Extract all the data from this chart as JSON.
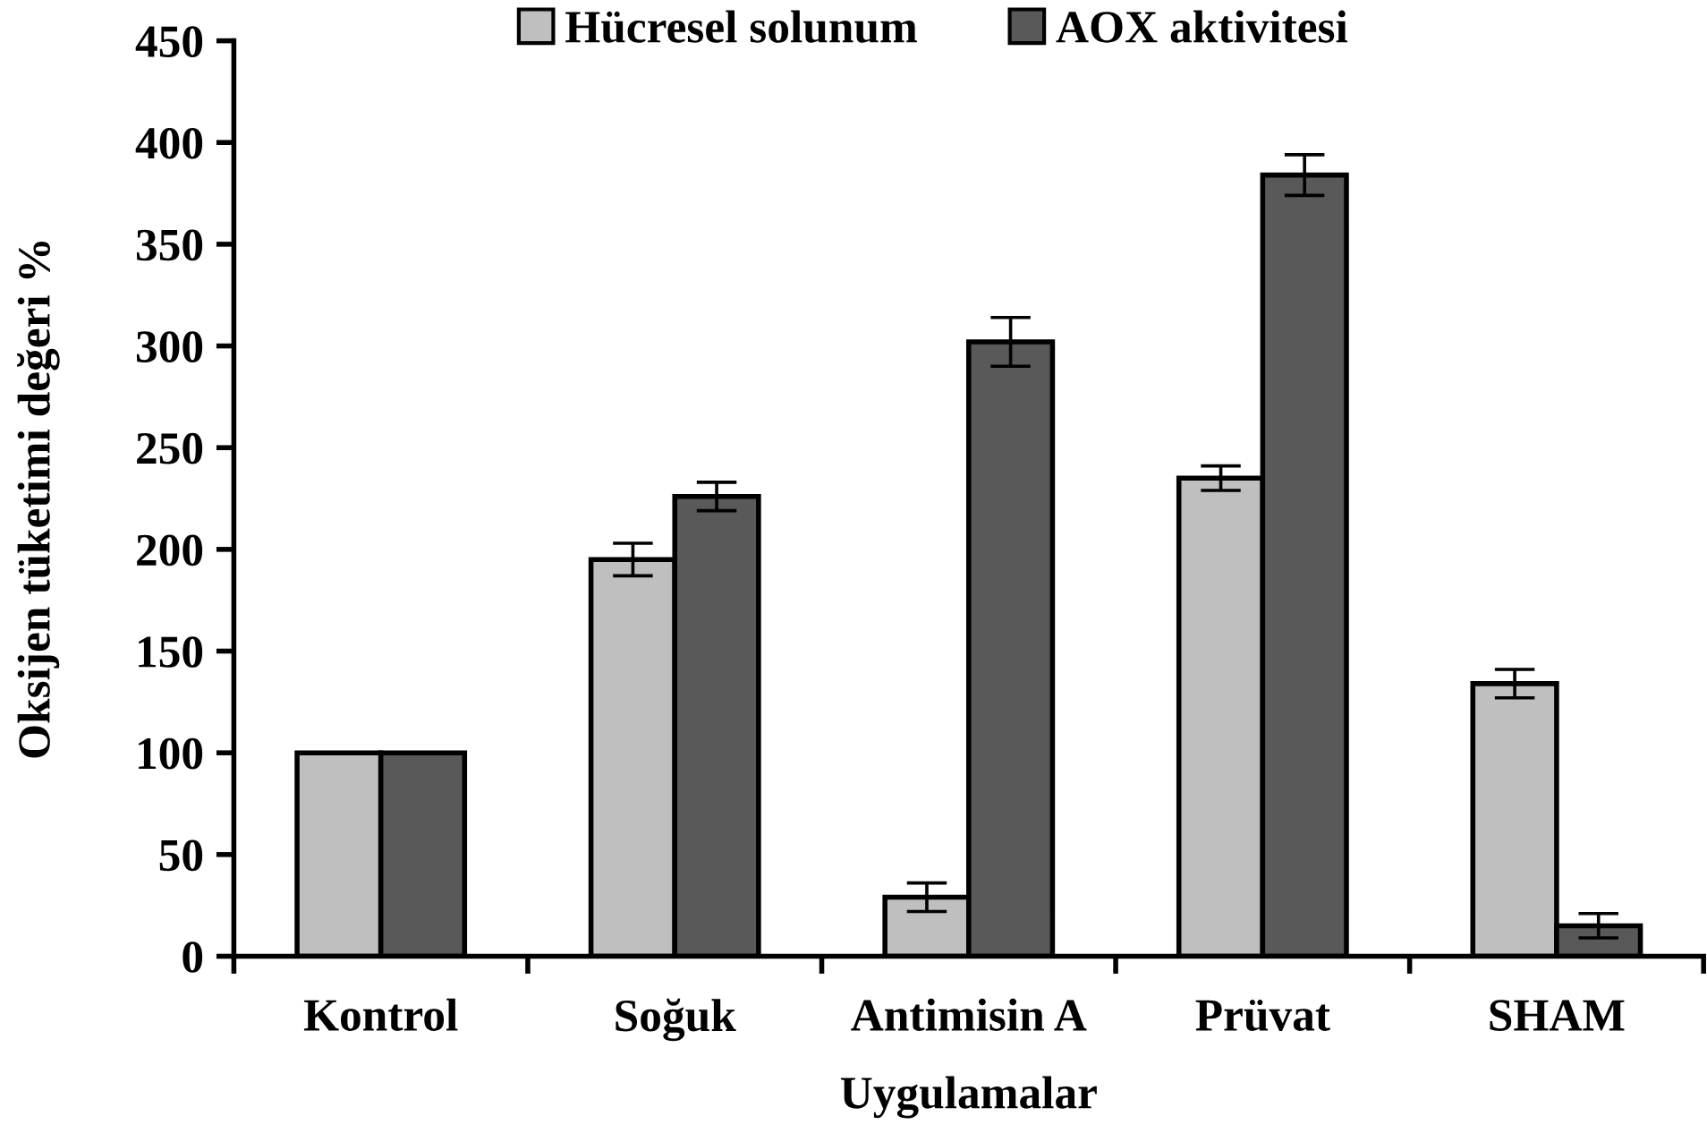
{
  "chart_data": {
    "type": "bar",
    "xlabel": "Uygulamalar",
    "ylabel": "Oksijen tüketimi değeri %",
    "categories": [
      "Kontrol",
      "Soğuk",
      "Antimisin A",
      "Prüvat",
      "SHAM"
    ],
    "series": [
      {
        "name": "Hücresel solunum",
        "color": "#bfbfbf",
        "values": [
          100,
          195,
          29,
          235,
          134
        ],
        "errors": [
          null,
          8,
          7,
          6,
          7
        ]
      },
      {
        "name": "AOX aktivitesi",
        "color": "#595959",
        "values": [
          100,
          226,
          302,
          384,
          15
        ],
        "errors": [
          null,
          7,
          12,
          10,
          6
        ]
      }
    ],
    "ylim": [
      0,
      450
    ],
    "yticks": [
      0,
      50,
      100,
      150,
      200,
      250,
      300,
      350,
      400,
      450
    ],
    "grid": false,
    "legend": "top"
  }
}
